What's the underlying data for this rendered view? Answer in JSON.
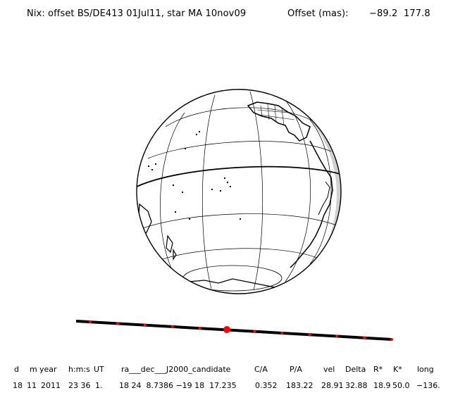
{
  "header": {
    "title": "Nix: offset BS/DE413 01Jul11, star MA 10nov09",
    "offset_label": "Offset (mas):",
    "offset_x": "−89.2",
    "offset_y": "177.8"
  },
  "table": {
    "headers": [
      "d",
      "m",
      "year",
      "h:m:s",
      "UT",
      "ra___dec___J2000_candidate",
      "C/A",
      "P/A",
      "vel",
      "Delta",
      "R*",
      "K*",
      "long"
    ],
    "row": [
      "18",
      "11",
      "2011",
      "23 36",
      "1.",
      "18 24  8.7386 −19 18  17.235",
      "0.352",
      "183.22",
      "28.91",
      "32.88",
      "18.9",
      "50.0",
      "−136."
    ]
  },
  "track": {
    "marker_count": 12,
    "colors": {
      "line": "#000000",
      "marker": "#ff0000"
    }
  }
}
